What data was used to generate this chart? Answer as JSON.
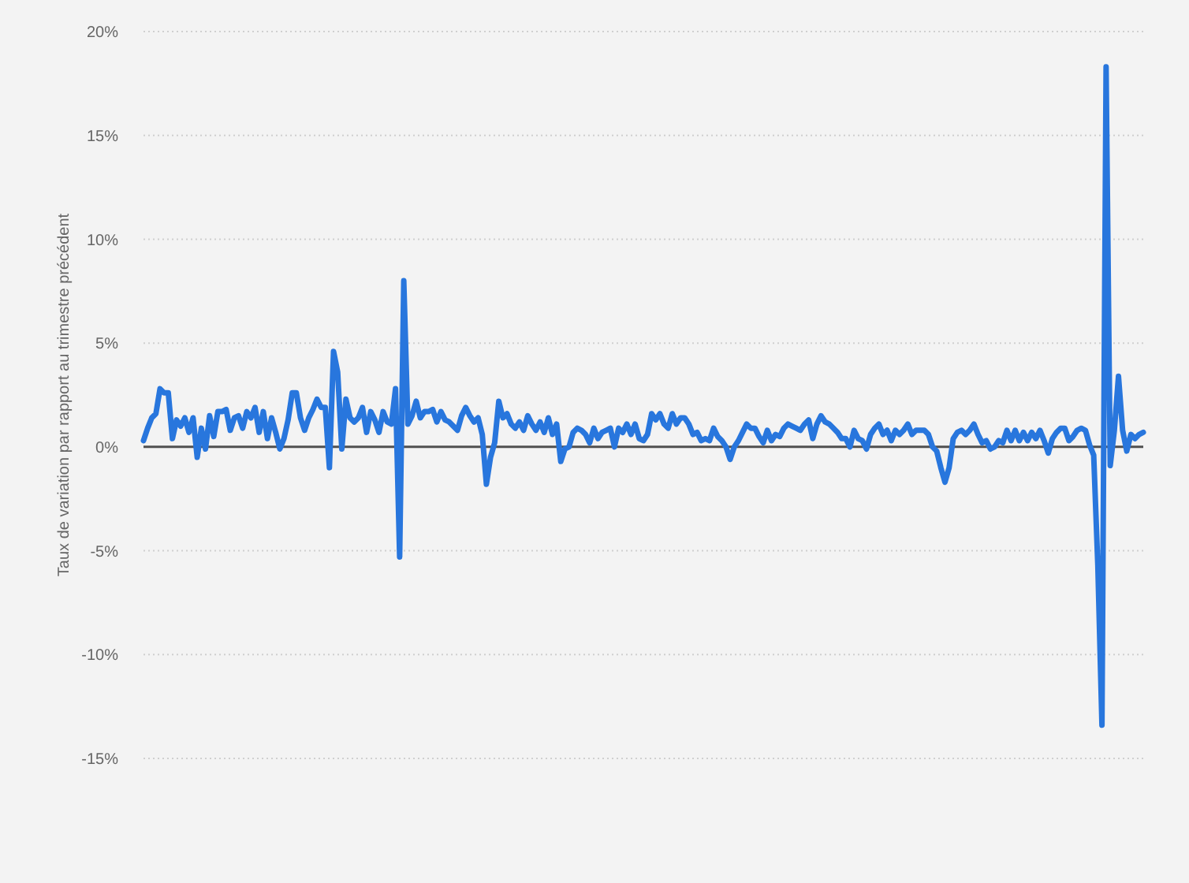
{
  "chart_data": {
    "type": "line",
    "ylabel": "Taux de variation par rapport au trimestre précédent",
    "categories": [
      null,
      null,
      null,
      null,
      null,
      null,
      null,
      null,
      null,
      null,
      null,
      null,
      null,
      null,
      null,
      null,
      null,
      null,
      null,
      null,
      null,
      null,
      null,
      null,
      null,
      null,
      null,
      null,
      null,
      null,
      null,
      null,
      null,
      null,
      null,
      null,
      null,
      null,
      null,
      null,
      null,
      null,
      null,
      null,
      null,
      null,
      null,
      null,
      null,
      null,
      null,
      null,
      null,
      null,
      null,
      null,
      null,
      null,
      null,
      null,
      null,
      null,
      null,
      null,
      null,
      null,
      null,
      null,
      null,
      null,
      null,
      null,
      null,
      null,
      null,
      null,
      null,
      null,
      null,
      null,
      null,
      null,
      null,
      null,
      null,
      null,
      null,
      null,
      null,
      null,
      null,
      null,
      null,
      null,
      null,
      null,
      null,
      null,
      null,
      null,
      null,
      null,
      null,
      null,
      null,
      null,
      null,
      null,
      null,
      null,
      null,
      null,
      null,
      null,
      null,
      null,
      null,
      null,
      null,
      null,
      null,
      null,
      null,
      null,
      null,
      null,
      null,
      null,
      null,
      null,
      null,
      null,
      null,
      null,
      null,
      null,
      null,
      null,
      null,
      null,
      null,
      null,
      null,
      null,
      null,
      null,
      null,
      null,
      null,
      null,
      null,
      null,
      null,
      null,
      null,
      null,
      null,
      null,
      null,
      null,
      null,
      null,
      null,
      null,
      null,
      null,
      null,
      null,
      null,
      null,
      null,
      null,
      null,
      null,
      null,
      null,
      null,
      null,
      null,
      null,
      null,
      null,
      null,
      null,
      null,
      null,
      null,
      null,
      null,
      null,
      null,
      null,
      null,
      null,
      null,
      null,
      null,
      null,
      null,
      null,
      null,
      null,
      null,
      null,
      null,
      null,
      null,
      null,
      null,
      null,
      null,
      null,
      null,
      null,
      null,
      null,
      null,
      null,
      null,
      null,
      null,
      null,
      null,
      null,
      null,
      null,
      null,
      null,
      null,
      null,
      null,
      null,
      null,
      null,
      null,
      null,
      null,
      null,
      null,
      null,
      null,
      null,
      null
    ],
    "values": [
      0.3,
      0.9,
      1.4,
      1.6,
      2.8,
      2.6,
      2.6,
      0.4,
      1.3,
      1.0,
      1.4,
      0.7,
      1.4,
      -0.5,
      0.9,
      -0.1,
      1.5,
      0.5,
      1.7,
      1.7,
      1.8,
      0.8,
      1.4,
      1.5,
      0.9,
      1.7,
      1.4,
      1.9,
      0.7,
      1.7,
      0.4,
      1.4,
      0.7,
      -0.1,
      0.4,
      1.3,
      2.6,
      2.6,
      1.4,
      0.8,
      1.4,
      1.8,
      2.3,
      1.9,
      1.9,
      -1.0,
      4.6,
      3.6,
      -0.1,
      2.3,
      1.4,
      1.2,
      1.4,
      1.9,
      0.7,
      1.7,
      1.3,
      0.7,
      1.7,
      1.2,
      1.1,
      2.8,
      -5.3,
      8.0,
      1.1,
      1.5,
      2.2,
      1.4,
      1.7,
      1.7,
      1.8,
      1.2,
      1.7,
      1.3,
      1.2,
      1.0,
      0.8,
      1.5,
      1.9,
      1.5,
      1.2,
      1.4,
      0.6,
      -1.8,
      -0.5,
      0.2,
      2.2,
      1.4,
      1.6,
      1.1,
      0.9,
      1.2,
      0.8,
      1.5,
      1.1,
      0.8,
      1.2,
      0.7,
      1.4,
      0.6,
      1.1,
      -0.7,
      -0.1,
      0.0,
      0.7,
      0.9,
      0.8,
      0.6,
      0.2,
      0.9,
      0.4,
      0.7,
      0.8,
      0.9,
      0.0,
      0.9,
      0.7,
      1.1,
      0.6,
      1.1,
      0.4,
      0.3,
      0.6,
      1.6,
      1.3,
      1.6,
      1.1,
      0.9,
      1.6,
      1.1,
      1.4,
      1.4,
      1.1,
      0.6,
      0.7,
      0.3,
      0.4,
      0.3,
      0.9,
      0.5,
      0.3,
      0.0,
      -0.6,
      0.0,
      0.3,
      0.7,
      1.1,
      0.9,
      0.9,
      0.5,
      0.2,
      0.8,
      0.3,
      0.6,
      0.5,
      0.9,
      1.1,
      1.0,
      0.9,
      0.8,
      1.1,
      1.3,
      0.4,
      1.1,
      1.5,
      1.2,
      1.1,
      0.9,
      0.7,
      0.4,
      0.4,
      0.0,
      0.8,
      0.4,
      0.3,
      -0.1,
      0.6,
      0.9,
      1.1,
      0.6,
      0.8,
      0.3,
      0.8,
      0.6,
      0.8,
      1.1,
      0.6,
      0.8,
      0.8,
      0.8,
      0.6,
      0.0,
      -0.2,
      -1.0,
      -1.7,
      -1.0,
      0.4,
      0.7,
      0.8,
      0.6,
      0.8,
      1.1,
      0.6,
      0.2,
      0.3,
      -0.1,
      0.0,
      0.3,
      0.2,
      0.8,
      0.3,
      0.8,
      0.3,
      0.7,
      0.3,
      0.7,
      0.4,
      0.8,
      0.3,
      -0.3,
      0.4,
      0.7,
      0.9,
      0.9,
      0.3,
      0.5,
      0.8,
      0.9,
      0.8,
      0.1,
      -0.4,
      -5.7,
      -13.4,
      18.3,
      -0.9,
      0.8,
      3.4,
      0.8,
      -0.2,
      0.6,
      0.4,
      0.6,
      0.7
    ],
    "color": "#2876dd",
    "ylim": [
      -15,
      20
    ],
    "yticks": [
      {
        "value": -15,
        "label": "-15%"
      },
      {
        "value": -10,
        "label": "-10%"
      },
      {
        "value": -5,
        "label": "-5%"
      },
      {
        "value": 0,
        "label": "0%"
      },
      {
        "value": 5,
        "label": "5%"
      },
      {
        "value": 10,
        "label": "10%"
      },
      {
        "value": 15,
        "label": "15%"
      },
      {
        "value": 20,
        "label": "20%"
      }
    ],
    "ref_lines": [
      {
        "axis": "y",
        "value": 0,
        "color": "#505050"
      }
    ],
    "grid": "y",
    "tick_labels": "y"
  }
}
